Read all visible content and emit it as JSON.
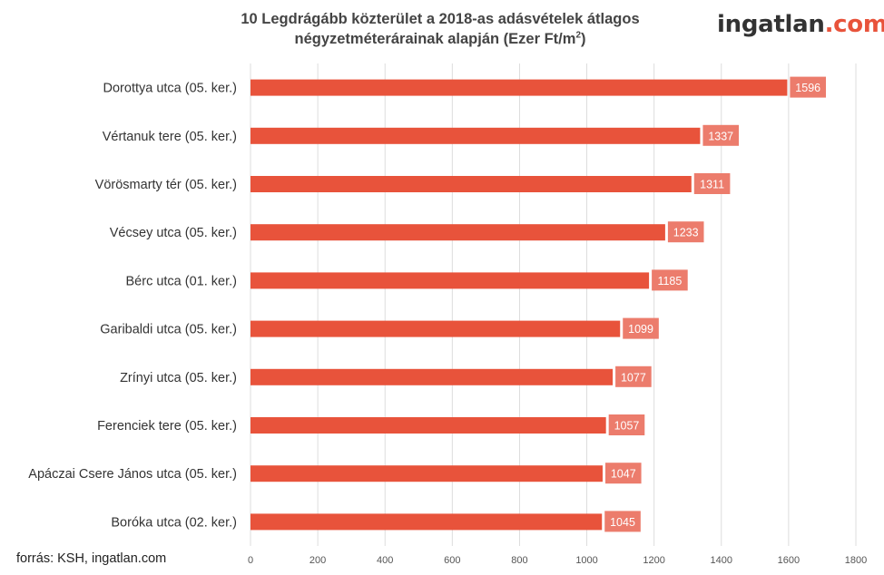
{
  "header": {
    "title_line1": "10 Legdrágább közterület a 2018-as adásvételek átlagos",
    "title_line2_main": "négyzetméterárainak alapján (Ezer Ft/m",
    "title_line2_sup": "2",
    "title_line2_end": ")"
  },
  "logo": {
    "text_main": "ingatlan",
    "text_suffix": ".com",
    "color_main": "#333333",
    "color_suffix": "#e8533b"
  },
  "source": "forrás: KSH, ingatlan.com",
  "colors": {
    "bar": "#e8533b",
    "data_label_bg": "#ec7c6c",
    "grid": "#dddddd"
  },
  "chart_data": {
    "type": "bar",
    "orientation": "horizontal",
    "title": "10 Legdrágább közterület a 2018-as adásvételek átlagos négyzetméterárainak alapján (Ezer Ft/m2)",
    "categories": [
      "Dorottya utca (05. ker.)",
      "Vértanuk tere (05. ker.)",
      "Vörösmarty tér (05. ker.)",
      "Vécsey utca (05. ker.)",
      "Bérc utca (01. ker.)",
      "Garibaldi utca (05. ker.)",
      "Zrínyi utca (05. ker.)",
      "Ferenciek tere (05. ker.)",
      "Apáczai Csere János utca (05. ker.)",
      "Boróka utca (02. ker.)"
    ],
    "values": [
      1596,
      1337,
      1311,
      1233,
      1185,
      1099,
      1077,
      1057,
      1047,
      1045
    ],
    "xlim": [
      0,
      1800
    ],
    "xticks": [
      0,
      200,
      400,
      600,
      800,
      1000,
      1200,
      1400,
      1600,
      1800
    ],
    "grid": "vertical",
    "data_labels": true
  }
}
